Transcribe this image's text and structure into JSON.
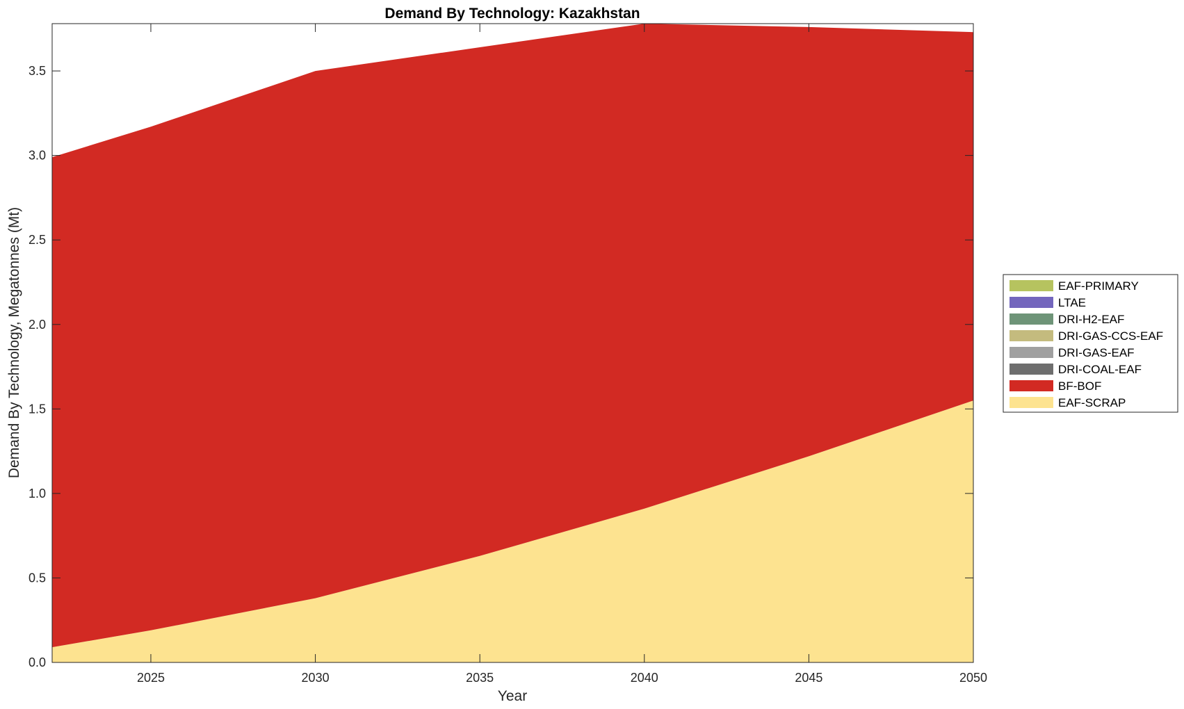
{
  "chart_data": {
    "type": "area",
    "stacked": true,
    "title": "Demand By Technology: Kazakhstan",
    "xlabel": "Year",
    "ylabel": "Demand By Technology, Megatonnes (Mt)",
    "xlim": [
      2022,
      2050
    ],
    "ylim": [
      0,
      3.78
    ],
    "xticks": [
      "2025",
      "2030",
      "2035",
      "2040",
      "2045",
      "2050"
    ],
    "yticks": [
      "0.0",
      "0.5",
      "1.0",
      "1.5",
      "2.0",
      "2.5",
      "3.0",
      "3.5"
    ],
    "grid": false,
    "legend_position": "right",
    "x": [
      2022,
      2025,
      2030,
      2035,
      2040,
      2045,
      2050
    ],
    "series": [
      {
        "name": "EAF-SCRAP",
        "color": "#fde390",
        "values": [
          0.09,
          0.19,
          0.38,
          0.63,
          0.91,
          1.22,
          1.55
        ]
      },
      {
        "name": "BF-BOF",
        "color": "#d22a23",
        "values": [
          2.9,
          2.98,
          3.12,
          3.01,
          2.87,
          2.54,
          2.18
        ]
      },
      {
        "name": "DRI-COAL-EAF",
        "color": "#6e6e6e",
        "values": [
          0,
          0,
          0,
          0,
          0,
          0,
          0
        ]
      },
      {
        "name": "DRI-GAS-EAF",
        "color": "#a0a0a0",
        "values": [
          0,
          0,
          0,
          0,
          0,
          0,
          0
        ]
      },
      {
        "name": "DRI-GAS-CCS-EAF",
        "color": "#c4bb7e",
        "values": [
          0,
          0,
          0,
          0,
          0,
          0,
          0
        ]
      },
      {
        "name": "DRI-H2-EAF",
        "color": "#6e9478",
        "values": [
          0,
          0,
          0,
          0,
          0,
          0,
          0
        ]
      },
      {
        "name": "LTAE",
        "color": "#7366bd",
        "values": [
          0,
          0,
          0,
          0,
          0,
          0,
          0
        ]
      },
      {
        "name": "EAF-PRIMARY",
        "color": "#b6c35f",
        "values": [
          0,
          0,
          0,
          0,
          0,
          0,
          0
        ]
      }
    ],
    "legend_order": [
      "EAF-PRIMARY",
      "LTAE",
      "DRI-H2-EAF",
      "DRI-GAS-CCS-EAF",
      "DRI-GAS-EAF",
      "DRI-COAL-EAF",
      "BF-BOF",
      "EAF-SCRAP"
    ]
  }
}
